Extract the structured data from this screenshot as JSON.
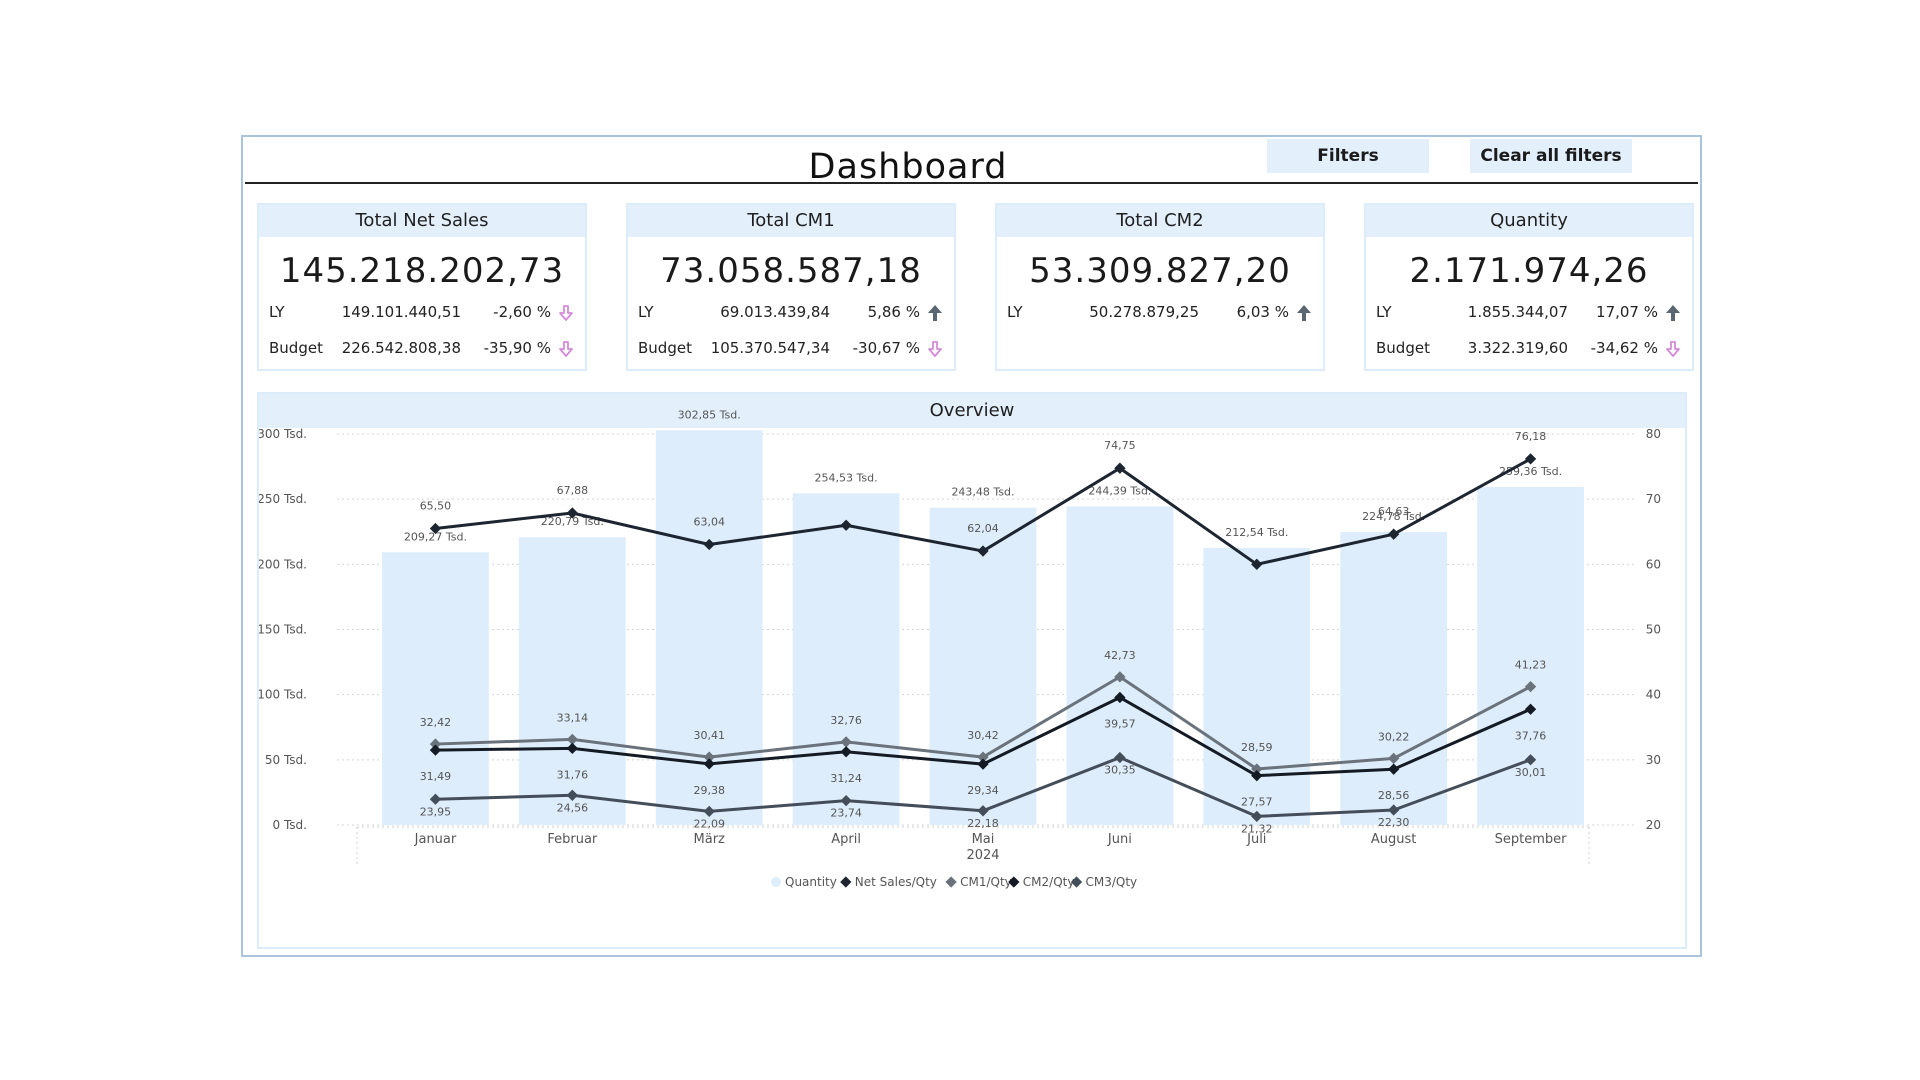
{
  "header": {
    "title": "Dashboard",
    "filters_label": "Filters",
    "clear_filters_label": "Clear all filters"
  },
  "kpis": [
    {
      "title": "Total Net Sales",
      "value": "145.218.202,73",
      "ly_label": "LY",
      "ly_value": "149.101.440,51",
      "ly_pct": "-2,60 %",
      "ly_trend": "down",
      "budget_label": "Budget",
      "budget_value": "226.542.808,38",
      "budget_pct": "-35,90 %",
      "budget_trend": "down"
    },
    {
      "title": "Total CM1",
      "value": "73.058.587,18",
      "ly_label": "LY",
      "ly_value": "69.013.439,84",
      "ly_pct": "5,86 %",
      "ly_trend": "up",
      "budget_label": "Budget",
      "budget_value": "105.370.547,34",
      "budget_pct": "-30,67 %",
      "budget_trend": "down"
    },
    {
      "title": "Total CM2",
      "value": "53.309.827,20",
      "ly_label": "LY",
      "ly_value": "50.278.879,25",
      "ly_pct": "6,03 %",
      "ly_trend": "up"
    },
    {
      "title": "Quantity",
      "value": "2.171.974,26",
      "ly_label": "LY",
      "ly_value": "1.855.344,07",
      "ly_pct": "17,07 %",
      "ly_trend": "up",
      "budget_label": "Budget",
      "budget_value": "3.322.319,60",
      "budget_pct": "-34,62 %",
      "budget_trend": "down"
    }
  ],
  "colors": {
    "bar": "#deedfb",
    "up_arrow": "#5a6670",
    "down_arrow": "#d58ad9",
    "header_bg": "#e3f0fc"
  },
  "chart_data": {
    "type": "bar+line",
    "title": "Overview",
    "categories": [
      "Januar",
      "Februar",
      "März",
      "April",
      "Mai",
      "Juni",
      "Juli",
      "August",
      "September"
    ],
    "x_group_label": "2024",
    "x_group_under": "Mai",
    "y_left": {
      "range": [
        0,
        300000
      ],
      "ticks": [
        0,
        50000,
        100000,
        150000,
        200000,
        250000,
        300000
      ],
      "tick_labels": [
        "0 Tsd.",
        "50 Tsd.",
        "100 Tsd.",
        "150 Tsd.",
        "200 Tsd.",
        "250 Tsd.",
        "300 Tsd."
      ]
    },
    "y_right": {
      "range": [
        20,
        80
      ],
      "ticks": [
        20,
        30,
        40,
        50,
        60,
        70,
        80
      ],
      "tick_labels": [
        "20",
        "30",
        "40",
        "50",
        "60",
        "70",
        "80"
      ]
    },
    "grid": true,
    "legend_position": "bottom",
    "series": [
      {
        "name": "Quantity",
        "type": "bar",
        "axis": "left",
        "values": [
          209270,
          220790,
          302850,
          254530,
          243480,
          244390,
          212540,
          224780,
          259360
        ],
        "labels": [
          "209,27 Tsd.",
          "220,79 Tsd.",
          "302,85 Tsd.",
          "254,53 Tsd.",
          "243,48 Tsd.",
          "244,39 Tsd.",
          "212,54 Tsd.",
          "224,78 Tsd.",
          "259,36 Tsd."
        ],
        "color": "#deedfb"
      },
      {
        "name": "Net Sales/Qty",
        "type": "line",
        "axis": "right",
        "values": [
          65.5,
          67.88,
          63.04,
          null,
          62.04,
          74.75,
          null,
          64.63,
          76.18
        ],
        "labels": [
          "65,50",
          "67,88",
          "63,04",
          "",
          "62,04",
          "74,75",
          "",
          "64,63",
          "76,18"
        ],
        "color": "#1c2530"
      },
      {
        "name": "CM1/Qty",
        "type": "line",
        "axis": "right",
        "values": [
          32.42,
          33.14,
          30.41,
          32.76,
          30.42,
          42.73,
          28.59,
          30.22,
          41.23
        ],
        "labels": [
          "32,42",
          "33,14",
          "30,41",
          "32,76",
          "30,42",
          "42,73",
          "28,59",
          "30,22",
          "41,23"
        ],
        "color": "#6a727c"
      },
      {
        "name": "CM2/Qty",
        "type": "line",
        "axis": "right",
        "values": [
          31.49,
          31.76,
          29.38,
          31.24,
          29.34,
          39.57,
          27.57,
          28.56,
          37.76
        ],
        "labels": [
          "31,49",
          "31,76",
          "29,38",
          "31,24",
          "29,34",
          "39,57",
          "27,57",
          "28,56",
          "37,76"
        ],
        "color": "#141b24"
      },
      {
        "name": "CM3/Qty",
        "type": "line",
        "axis": "right",
        "values": [
          23.95,
          24.56,
          22.09,
          23.74,
          22.18,
          30.35,
          21.32,
          22.3,
          30.01
        ],
        "labels": [
          "23,95",
          "24,56",
          "22,09",
          "23,74",
          "22,18",
          "30,35",
          "21,32",
          "22,30",
          "30,01"
        ],
        "color": "#444e5a"
      }
    ]
  }
}
